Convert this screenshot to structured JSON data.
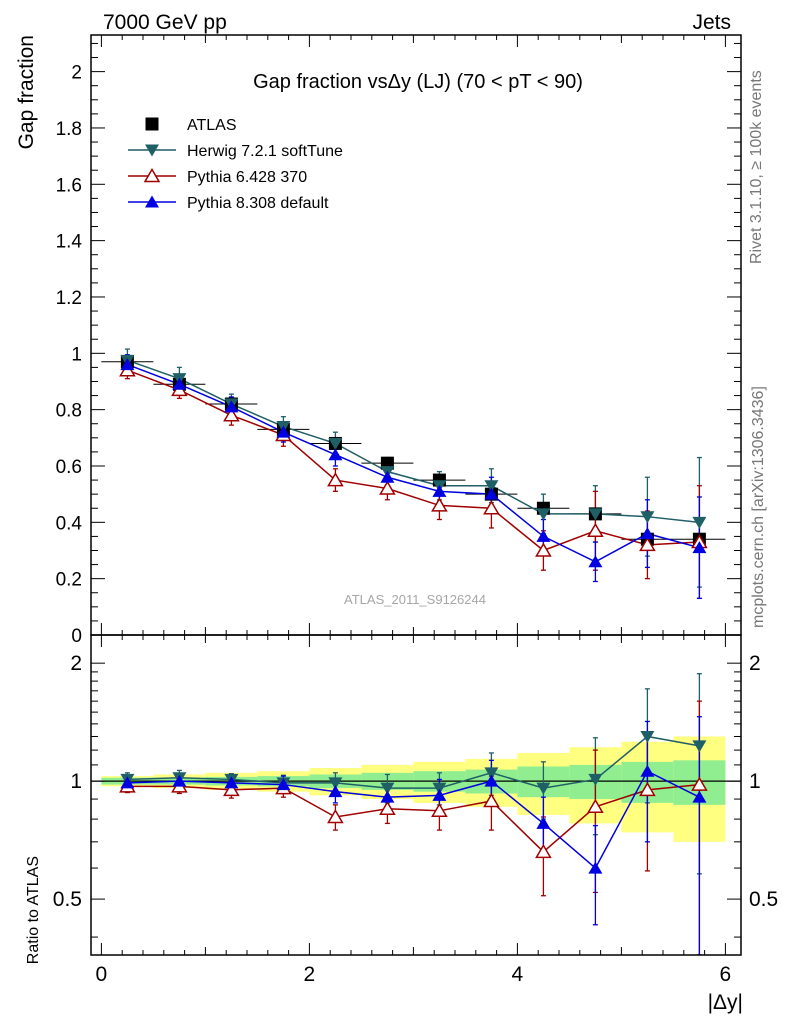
{
  "header": {
    "left": "7000 GeV pp",
    "right": "Jets"
  },
  "side_labels": {
    "rivet": "Rivet 3.1.10, ≥ 100k events",
    "mcplots": "mcplots.cern.ch [arXiv:1306.3436]"
  },
  "watermark": "ATLAS_2011_S9126244",
  "colors": {
    "ATLAS": "#000000",
    "Herwig": "#1f5f66",
    "Pythia6": "#a00000",
    "Pythia8": "#0000e0",
    "band_inner": "#90ee90",
    "band_outer": "#ffff80"
  },
  "chart_data": [
    {
      "type": "line",
      "title": "Gap fraction vsΔy (LJ) (70 < pT <  90)",
      "ylabel": "Gap fraction",
      "xlim": [
        -0.1,
        6.15
      ],
      "ylim": [
        0,
        2.13
      ],
      "yticks": [
        0,
        0.2,
        0.4,
        0.6,
        0.8,
        1,
        1.2,
        1.4,
        1.6,
        1.8,
        2
      ],
      "ytick_labels": [
        "0",
        "0.2",
        "0.4",
        "0.6",
        "0.8",
        "1",
        "1.2",
        "1.4",
        "1.6",
        "1.8",
        "2"
      ],
      "x": [
        0.25,
        0.75,
        1.25,
        1.75,
        2.25,
        2.75,
        3.25,
        3.75,
        4.25,
        4.75,
        5.25,
        5.75
      ],
      "legend_position": "top-left",
      "series": [
        {
          "name": "ATLAS",
          "marker": "square",
          "values": [
            0.97,
            0.89,
            0.82,
            0.73,
            0.68,
            0.61,
            0.55,
            0.5,
            0.45,
            0.43,
            0.34,
            0.34
          ],
          "errors": [
            0.02,
            0.02,
            0.02,
            0.02,
            0.02,
            0.02,
            0.02,
            0.02,
            0.02,
            0.02,
            0.02,
            0.02
          ]
        },
        {
          "name": "Herwig 7.2.1 softTune",
          "marker": "triangle-down",
          "values": [
            0.975,
            0.91,
            0.82,
            0.74,
            0.68,
            0.58,
            0.53,
            0.53,
            0.43,
            0.43,
            0.42,
            0.4
          ],
          "errors": [
            0.04,
            0.04,
            0.035,
            0.035,
            0.04,
            0.05,
            0.05,
            0.06,
            0.07,
            0.1,
            0.14,
            0.23
          ]
        },
        {
          "name": "Pythia 6.428 370",
          "marker": "triangle-open",
          "values": [
            0.94,
            0.87,
            0.78,
            0.71,
            0.55,
            0.52,
            0.46,
            0.45,
            0.3,
            0.37,
            0.32,
            0.33
          ],
          "errors": [
            0.03,
            0.03,
            0.035,
            0.04,
            0.04,
            0.04,
            0.05,
            0.07,
            0.07,
            0.14,
            0.12,
            0.2
          ]
        },
        {
          "name": "Pythia 8.308 default",
          "marker": "triangle-up",
          "values": [
            0.96,
            0.89,
            0.81,
            0.72,
            0.64,
            0.56,
            0.51,
            0.5,
            0.35,
            0.26,
            0.36,
            0.31
          ],
          "errors": [
            0.035,
            0.035,
            0.035,
            0.035,
            0.04,
            0.04,
            0.05,
            0.06,
            0.06,
            0.07,
            0.12,
            0.18
          ]
        }
      ]
    },
    {
      "type": "line",
      "ylabel": "Ratio to ATLAS",
      "xlabel": "|Δy|",
      "xlim": [
        -0.1,
        6.15
      ],
      "ylim": [
        0.36,
        2.36
      ],
      "yscale": "log",
      "xticks": [
        0,
        2,
        4,
        6
      ],
      "xtick_labels": [
        "0",
        "2",
        "4",
        "6"
      ],
      "yticks": [
        0.5,
        1,
        2
      ],
      "ytick_labels": [
        "0.5",
        "1",
        "2"
      ],
      "x": [
        0.25,
        0.75,
        1.25,
        1.75,
        2.25,
        2.75,
        3.25,
        3.75,
        4.25,
        4.75,
        5.25,
        5.75
      ],
      "band_inner": [
        0.02,
        0.02,
        0.025,
        0.03,
        0.04,
        0.05,
        0.06,
        0.07,
        0.09,
        0.1,
        0.12,
        0.13
      ],
      "band_outer": [
        0.03,
        0.04,
        0.05,
        0.06,
        0.08,
        0.1,
        0.12,
        0.14,
        0.18,
        0.22,
        0.26,
        0.3
      ],
      "series": [
        {
          "name": "Herwig 7.2.1 softTune",
          "values": [
            1.01,
            1.02,
            1.01,
            0.99,
            0.99,
            0.96,
            0.96,
            1.05,
            0.96,
            1.01,
            1.3,
            1.23
          ],
          "errors": [
            0.04,
            0.045,
            0.035,
            0.045,
            0.06,
            0.08,
            0.09,
            0.13,
            0.16,
            0.28,
            0.42,
            0.65
          ]
        },
        {
          "name": "Pythia 6.428 370",
          "values": [
            0.97,
            0.97,
            0.95,
            0.96,
            0.81,
            0.85,
            0.84,
            0.89,
            0.66,
            0.86,
            0.95,
            0.98
          ],
          "errors": [
            0.035,
            0.04,
            0.045,
            0.05,
            0.06,
            0.07,
            0.09,
            0.14,
            0.15,
            0.34,
            0.36,
            0.62
          ]
        },
        {
          "name": "Pythia 8.308 default",
          "values": [
            0.99,
            1.0,
            0.99,
            0.98,
            0.94,
            0.91,
            0.92,
            1.0,
            0.78,
            0.6,
            1.06,
            0.91
          ],
          "errors": [
            0.04,
            0.04,
            0.045,
            0.05,
            0.06,
            0.07,
            0.09,
            0.13,
            0.13,
            0.17,
            0.36,
            0.55
          ]
        }
      ]
    }
  ]
}
